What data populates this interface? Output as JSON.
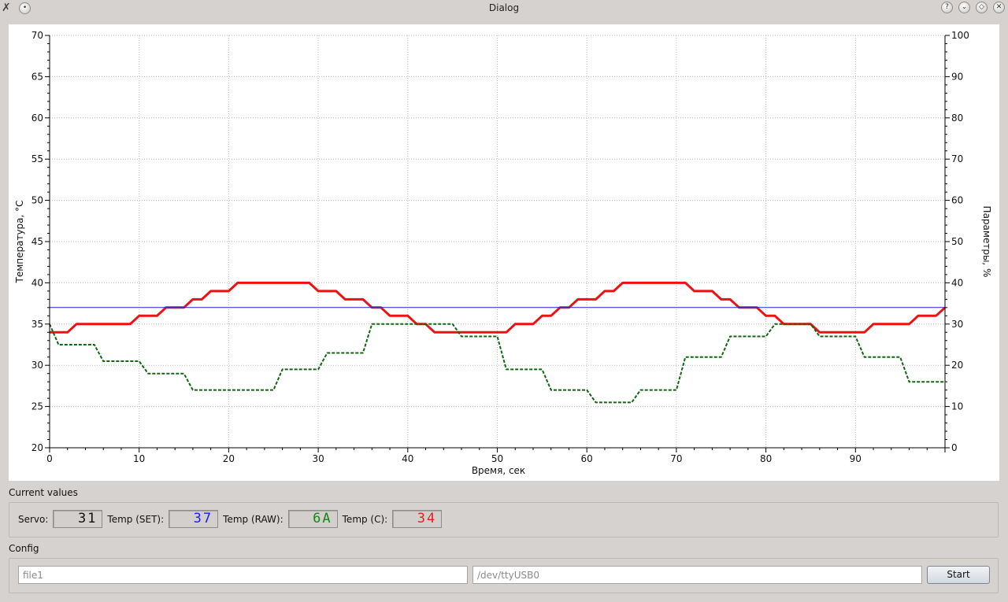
{
  "window": {
    "title": "Dialog"
  },
  "titlebar_buttons": [
    {
      "name": "help-button",
      "glyph": "?"
    },
    {
      "name": "minimize-button",
      "glyph": "⌄"
    },
    {
      "name": "maximize-button",
      "glyph": "◇"
    },
    {
      "name": "close-button",
      "glyph": "✕"
    }
  ],
  "plot": {
    "xlabel": "Время, сек",
    "ylabel_left": "Температура, °C",
    "ylabel_right": "Параметры, %"
  },
  "chart_data": {
    "type": "line",
    "xlim": [
      0,
      100
    ],
    "ylim_left": [
      20,
      70
    ],
    "ylim_right": [
      0,
      100
    ],
    "x_ticks": [
      0,
      10,
      20,
      30,
      40,
      50,
      60,
      70,
      80,
      90
    ],
    "y_ticks_left": [
      20,
      25,
      30,
      35,
      40,
      45,
      50,
      55,
      60,
      65,
      70
    ],
    "y_ticks_right": [
      0,
      10,
      20,
      30,
      40,
      50,
      60,
      70,
      80,
      90,
      100
    ],
    "grid": true,
    "series": [
      {
        "axis": "left",
        "color": "#ee1111",
        "style": "solid",
        "x": [
          0,
          2,
          3,
          9,
          10,
          12,
          13,
          15,
          16,
          17,
          18,
          20,
          21,
          29,
          30,
          32,
          33,
          35,
          36,
          37,
          38,
          40,
          41,
          42,
          43,
          44,
          45,
          51,
          52,
          54,
          55,
          56,
          57,
          58,
          59,
          61,
          62,
          63,
          64,
          71,
          72,
          74,
          75,
          76,
          77,
          78,
          79,
          80,
          81,
          82,
          83,
          85,
          86,
          88,
          89,
          90,
          91,
          92,
          93,
          96,
          97,
          99,
          100
        ],
        "y": [
          34,
          34,
          35,
          35,
          36,
          36,
          37,
          37,
          38,
          38,
          39,
          39,
          40,
          40,
          39,
          39,
          38,
          38,
          37,
          37,
          36,
          36,
          35,
          35,
          34,
          34,
          34,
          34,
          35,
          35,
          36,
          36,
          37,
          37,
          38,
          38,
          39,
          39,
          40,
          40,
          39,
          39,
          38,
          38,
          37,
          37,
          37,
          36,
          36,
          35,
          35,
          35,
          34,
          34,
          34,
          34,
          34,
          35,
          35,
          35,
          36,
          36,
          37
        ]
      },
      {
        "axis": "left",
        "color": "#2222cc",
        "style": "solid",
        "x": [
          0,
          100
        ],
        "y": [
          37,
          37
        ]
      },
      {
        "axis": "right",
        "color": "#116611",
        "style": "dashed",
        "x": [
          0,
          1,
          5,
          6,
          10,
          11,
          15,
          16,
          25,
          26,
          30,
          31,
          35,
          36,
          45,
          46,
          50,
          51,
          55,
          56,
          60,
          61,
          65,
          66,
          70,
          71,
          75,
          76,
          80,
          81,
          85,
          86,
          90,
          91,
          95,
          96,
          100
        ],
        "y": [
          30,
          25,
          25,
          21,
          21,
          18,
          18,
          14,
          14,
          19,
          19,
          23,
          23,
          30,
          30,
          27,
          27,
          19,
          19,
          14,
          14,
          11,
          11,
          14,
          14,
          22,
          22,
          27,
          27,
          30,
          30,
          27,
          27,
          22,
          22,
          16,
          16
        ]
      }
    ]
  },
  "current_values": {
    "title": "Current values",
    "servo_label": "Servo:",
    "servo_value": "31",
    "set_label": "Temp (SET):",
    "set_value": "37",
    "raw_label": "Temp (RAW):",
    "raw_value": "6A",
    "c_label": "Temp (C):",
    "c_value": "34"
  },
  "config": {
    "title": "Config",
    "file_placeholder": "file1",
    "port_placeholder": "/dev/ttyUSB0",
    "start_label": "Start"
  }
}
